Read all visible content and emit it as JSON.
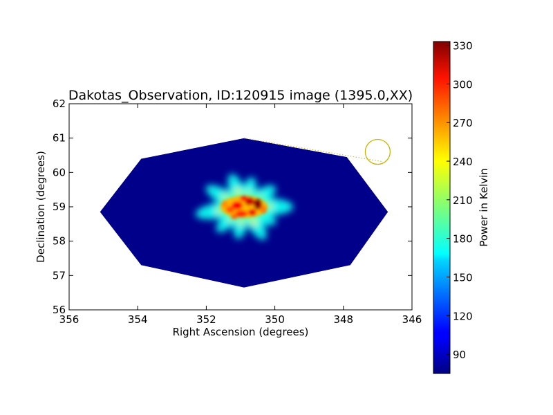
{
  "chart_data": {
    "type": "heatmap",
    "title": "Dakotas_Observation, ID:120915 image (1395.0,XX)",
    "xlabel": "Right Ascension (degrees)",
    "ylabel": "Declination (degrees)",
    "xlim": [
      356,
      346
    ],
    "ylim": [
      56,
      62
    ],
    "xticks": [
      "356",
      "354",
      "352",
      "350",
      "348",
      "346"
    ],
    "yticks": [
      "56",
      "57",
      "58",
      "59",
      "60",
      "61",
      "62"
    ],
    "colorbar": {
      "label": "Power in Kelvin",
      "range": [
        75,
        333
      ],
      "ticks": [
        "90",
        "120",
        "150",
        "180",
        "210",
        "240",
        "270",
        "300",
        "330"
      ],
      "colormap": "jet"
    },
    "footprint_polygon": [
      [
        350.9,
        61.0
      ],
      [
        347.9,
        60.45
      ],
      [
        346.7,
        58.85
      ],
      [
        347.8,
        57.3
      ],
      [
        350.9,
        56.65
      ],
      [
        353.9,
        57.3
      ],
      [
        355.1,
        58.85
      ],
      [
        353.9,
        60.4
      ]
    ],
    "background_value": 78,
    "emission_center": [
      350.9,
      59.0
    ],
    "peak_value": 330,
    "beam_marker": {
      "center": [
        347.0,
        60.6
      ],
      "color": "#c8b400"
    }
  }
}
